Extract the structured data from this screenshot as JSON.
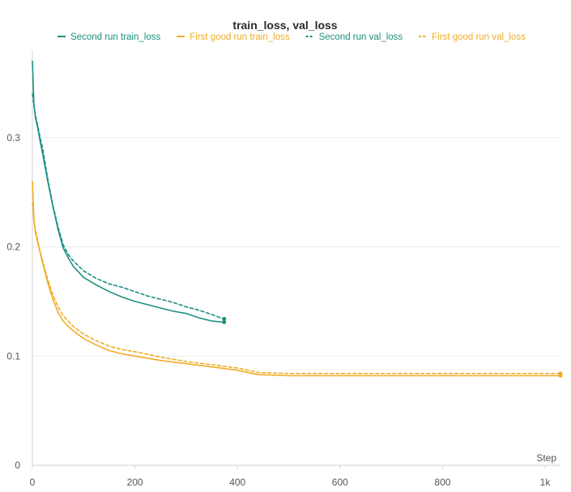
{
  "chart_data": {
    "type": "line",
    "title": "train_loss, val_loss",
    "xlabel": "Step",
    "ylabel": "",
    "xlim": [
      0,
      1030
    ],
    "ylim": [
      0,
      0.38
    ],
    "x_ticks": [
      {
        "value": 0,
        "label": "0"
      },
      {
        "value": 200,
        "label": "200"
      },
      {
        "value": 400,
        "label": "400"
      },
      {
        "value": 600,
        "label": "600"
      },
      {
        "value": 800,
        "label": "800"
      },
      {
        "value": 1000,
        "label": "1k"
      }
    ],
    "y_ticks": [
      {
        "value": 0,
        "label": "0"
      },
      {
        "value": 0.1,
        "label": "0.1"
      },
      {
        "value": 0.2,
        "label": "0.2"
      },
      {
        "value": 0.3,
        "label": "0.3"
      }
    ],
    "grid": true,
    "legend_position": "top",
    "series": [
      {
        "name": "Second run train_loss",
        "color": "#1b9080",
        "dash": "solid",
        "x": [
          0,
          3,
          6,
          10,
          15,
          20,
          30,
          40,
          50,
          60,
          70,
          80,
          100,
          125,
          150,
          175,
          200,
          225,
          250,
          275,
          300,
          325,
          350,
          374
        ],
        "y": [
          0.37,
          0.33,
          0.318,
          0.31,
          0.297,
          0.285,
          0.26,
          0.237,
          0.216,
          0.199,
          0.19,
          0.182,
          0.172,
          0.165,
          0.159,
          0.154,
          0.15,
          0.147,
          0.144,
          0.141,
          0.139,
          0.135,
          0.132,
          0.131
        ]
      },
      {
        "name": "First good run train_loss",
        "color": "#f0ad27",
        "dash": "solid",
        "x": [
          0,
          3,
          6,
          10,
          15,
          20,
          30,
          40,
          50,
          60,
          70,
          80,
          100,
          125,
          150,
          175,
          200,
          250,
          300,
          350,
          400,
          440,
          500,
          600,
          700,
          800,
          900,
          1000,
          1030
        ],
        "y": [
          0.26,
          0.225,
          0.213,
          0.205,
          0.195,
          0.185,
          0.167,
          0.152,
          0.14,
          0.132,
          0.127,
          0.123,
          0.116,
          0.11,
          0.105,
          0.102,
          0.1,
          0.096,
          0.093,
          0.09,
          0.087,
          0.083,
          0.082,
          0.082,
          0.082,
          0.082,
          0.082,
          0.082,
          0.082
        ]
      },
      {
        "name": "Second run val_loss",
        "color": "#1b9080",
        "dash": "dashed",
        "x": [
          0,
          3,
          6,
          10,
          15,
          20,
          30,
          40,
          50,
          60,
          70,
          80,
          100,
          125,
          150,
          175,
          200,
          225,
          250,
          275,
          300,
          325,
          350,
          374
        ],
        "y": [
          0.34,
          0.33,
          0.32,
          0.312,
          0.3,
          0.29,
          0.262,
          0.238,
          0.218,
          0.202,
          0.193,
          0.187,
          0.178,
          0.171,
          0.166,
          0.163,
          0.159,
          0.155,
          0.152,
          0.149,
          0.145,
          0.142,
          0.138,
          0.134
        ]
      },
      {
        "name": "First good run val_loss",
        "color": "#f0ad27",
        "dash": "dashed",
        "x": [
          0,
          3,
          6,
          10,
          15,
          20,
          30,
          40,
          50,
          60,
          70,
          80,
          100,
          125,
          150,
          175,
          200,
          250,
          300,
          350,
          400,
          440,
          500,
          600,
          700,
          800,
          900,
          1000,
          1030
        ],
        "y": [
          0.24,
          0.225,
          0.215,
          0.207,
          0.196,
          0.187,
          0.17,
          0.156,
          0.145,
          0.137,
          0.132,
          0.127,
          0.12,
          0.114,
          0.109,
          0.106,
          0.104,
          0.099,
          0.095,
          0.092,
          0.089,
          0.085,
          0.084,
          0.084,
          0.084,
          0.084,
          0.084,
          0.084,
          0.084
        ]
      }
    ]
  }
}
